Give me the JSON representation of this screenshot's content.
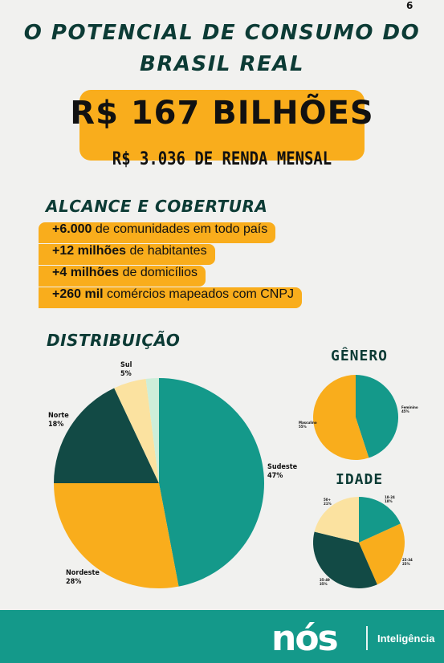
{
  "page_number": "6",
  "title_line1": "O POTENCIAL DE CONSUMO DO",
  "title_line2": "BRASIL REAL",
  "hero": {
    "value": "R$ 167 BILHÕES",
    "subtitle": "R$ 3.036 DE RENDA MENSAL"
  },
  "reach": {
    "title": "ALCANCE E COBERTURA",
    "items": [
      {
        "bold": "+6.000",
        "text": " de comunidades em todo país"
      },
      {
        "bold": "+12 milhões",
        "text": " de habitantes"
      },
      {
        "bold": "+4 milhões",
        "text": " de domicílios"
      },
      {
        "bold": "+260 mil",
        "text": " comércios mapeados com CNPJ"
      }
    ]
  },
  "distribution_title": "DISTRIBUIÇÃO",
  "gender_title": "GÊNERO",
  "age_title": "IDADE",
  "colors": {
    "teal": "#14998a",
    "orange": "#f9ad1c",
    "dark": "#124a45",
    "light_yellow": "#fbe2a0",
    "light_green": "#cdeed9"
  },
  "chart_data": [
    {
      "type": "pie",
      "title": "DISTRIBUIÇÃO",
      "slices": [
        {
          "label": "Sudeste",
          "value": 47,
          "display": "47%",
          "color": "#14998a"
        },
        {
          "label": "Nordeste",
          "value": 28,
          "display": "28%",
          "color": "#f9ad1c"
        },
        {
          "label": "Norte",
          "value": 18,
          "display": "18%",
          "color": "#124a45"
        },
        {
          "label": "Sul",
          "value": 5,
          "display": "5%",
          "color": "#fbe2a0"
        },
        {
          "label": "",
          "value": 2,
          "display": "",
          "color": "#cdeed9"
        }
      ]
    },
    {
      "type": "pie",
      "title": "GÊNERO",
      "slices": [
        {
          "label": "Feminino",
          "value": 45,
          "display": "45%",
          "color": "#14998a"
        },
        {
          "label": "Masculino",
          "value": 55,
          "display": "55%",
          "color": "#f9ad1c"
        }
      ]
    },
    {
      "type": "pie",
      "title": "IDADE",
      "slices": [
        {
          "label": "18-24",
          "value": 18,
          "display": "18%",
          "color": "#14998a"
        },
        {
          "label": "25-34",
          "value": 25,
          "display": "25%",
          "color": "#f9ad1c"
        },
        {
          "label": "35-49",
          "value": 35,
          "display": "35%",
          "color": "#124a45"
        },
        {
          "label": "50+",
          "value": 21,
          "display": "21%",
          "color": "#fbe2a0"
        }
      ]
    }
  ],
  "footer": {
    "logo": "nós",
    "brand": "Inteligência"
  }
}
